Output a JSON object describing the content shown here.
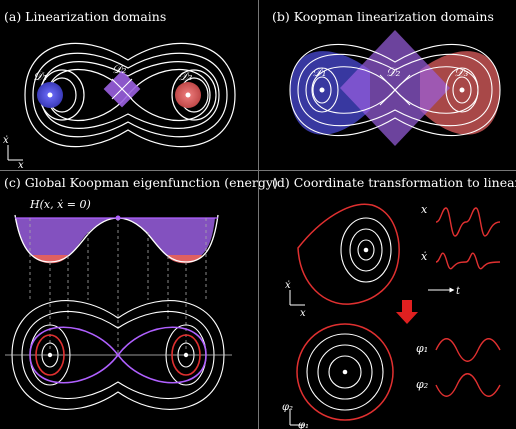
{
  "panels": {
    "a": {
      "title": "(a)  Linearization domains",
      "domains": [
        "𝒟₁",
        "𝒟₂",
        "𝒟₃"
      ]
    },
    "b": {
      "title": "(b)  Koopman linearization domains",
      "domains": [
        "𝒟₁",
        "𝒟₂",
        "𝒟₃"
      ]
    },
    "c": {
      "title": "(c)  Global Koopman eigenfunction (energy)",
      "function_label": "H(x, ẋ = 0)"
    },
    "d": {
      "title": "(d)  Coordinate transformation to linearize",
      "signals": [
        "x",
        "ẋ",
        "φ₁",
        "φ₂"
      ],
      "time_label": "t"
    }
  },
  "axes": {
    "state_x": "x",
    "state_xdot": "ẋ",
    "phi1": "φ₁",
    "phi2": "φ₂"
  },
  "colors": {
    "background": "#000000",
    "stream": "#ffffff",
    "blue_domain": "#4b4bd6",
    "red_domain": "#e06060",
    "purple_domain": "#9a5fe0",
    "separatrix": "#b060ff",
    "red_curve": "#e03030",
    "arrow": "#e02020"
  },
  "icons": {
    "down_arrow": "red-down-arrow-icon"
  }
}
